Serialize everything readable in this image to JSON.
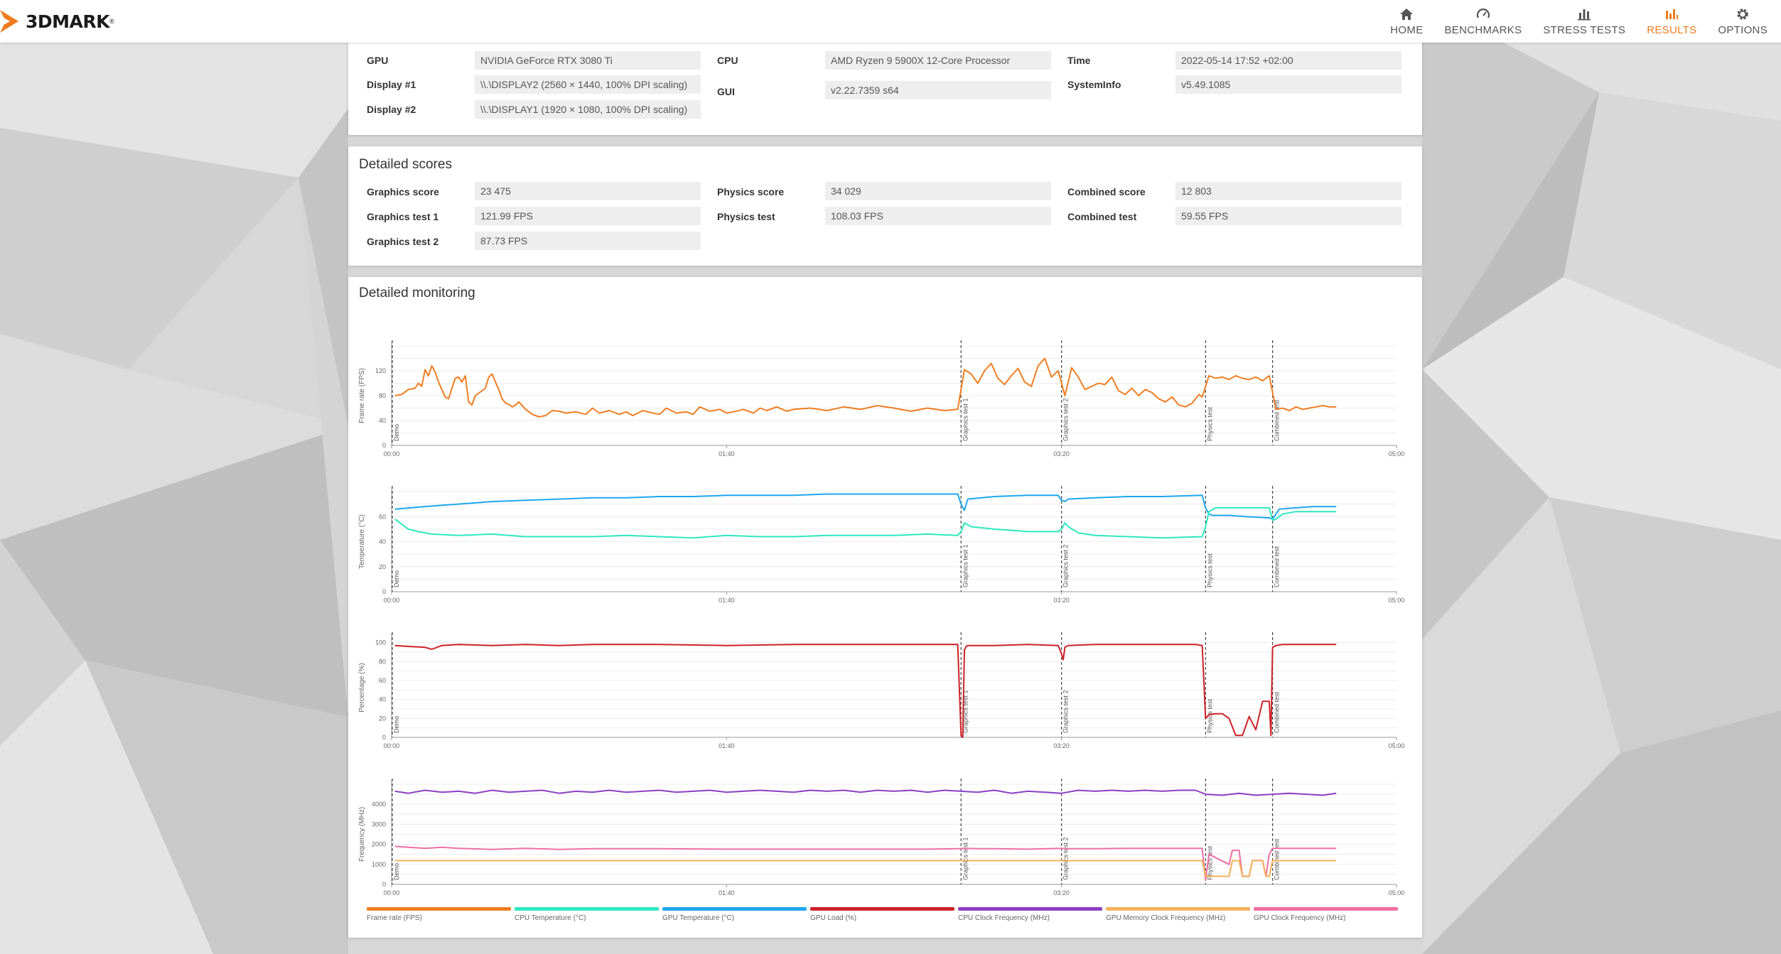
{
  "app": {
    "logo_text": "3DMARK",
    "logo_mark": "®"
  },
  "nav": [
    {
      "label": "HOME",
      "icon": "home-icon",
      "active": false
    },
    {
      "label": "BENCHMARKS",
      "icon": "gauge-icon",
      "active": false
    },
    {
      "label": "STRESS TESTS",
      "icon": "bar-chart-icon",
      "active": false
    },
    {
      "label": "RESULTS",
      "icon": "results-icon",
      "active": true
    },
    {
      "label": "OPTIONS",
      "icon": "gear-icon",
      "active": false
    }
  ],
  "accent_color": "#f07b1e",
  "system_info": {
    "gpu_label": "GPU",
    "gpu": "NVIDIA GeForce RTX 3080 Ti",
    "display1_label": "Display #1",
    "display1": "\\\\.\\DISPLAY2 (2560 × 1440, 100% DPI scaling)",
    "display2_label": "Display #2",
    "display2": "\\\\.\\DISPLAY1 (1920 × 1080, 100% DPI scaling)",
    "cpu_label": "CPU",
    "cpu": "AMD Ryzen 9 5900X 12-Core Processor",
    "gui_label": "GUI",
    "gui": "v2.22.7359 s64",
    "time_label": "Time",
    "time": "2022-05-14 17:52 +02:00",
    "sysinfo_label": "SystemInfo",
    "sysinfo": "v5.49.1085"
  },
  "detailed_scores": {
    "title": "Detailed scores",
    "graphics_score_label": "Graphics score",
    "graphics_score": "23 475",
    "graphics_test1_label": "Graphics test 1",
    "graphics_test1": "121.99 FPS",
    "graphics_test2_label": "Graphics test 2",
    "graphics_test2": "87.73 FPS",
    "physics_score_label": "Physics score",
    "physics_score": "34 029",
    "physics_test_label": "Physics test",
    "physics_test": "108.03 FPS",
    "combined_score_label": "Combined score",
    "combined_score": "12 803",
    "combined_test_label": "Combined test",
    "combined_test": "59.55 FPS"
  },
  "monitoring": {
    "title": "Detailed monitoring"
  },
  "chart_data": {
    "type": "line",
    "x_unit": "mm:ss",
    "xlim": [
      0,
      300
    ],
    "x_ticks": [
      "00:00",
      "01:40",
      "03:20",
      "05:00"
    ],
    "x_tick_values": [
      0,
      100,
      200,
      300
    ],
    "markers": [
      {
        "label": "Demo",
        "x": 0
      },
      {
        "label": "Graphics test 1",
        "x": 170
      },
      {
        "label": "Graphics test 2",
        "x": 200
      },
      {
        "label": "Physics test",
        "x": 243
      },
      {
        "label": "Combined test",
        "x": 263
      }
    ],
    "legend": [
      {
        "name": "Frame rate (FPS)",
        "color": "#ef7d22"
      },
      {
        "name": "CPU Temperature (°C)",
        "color": "#2ee8c0"
      },
      {
        "name": "GPU Temperature (°C)",
        "color": "#1ea7ef"
      },
      {
        "name": "GPU Load (%)",
        "color": "#cc2228"
      },
      {
        "name": "CPU Clock Frequency (MHz)",
        "color": "#8d3fc4"
      },
      {
        "name": "GPU Memory Clock Frequency (MHz)",
        "color": "#f5b25a"
      },
      {
        "name": "GPU Clock Frequency (MHz)",
        "color": "#ee6fa2"
      }
    ],
    "panels": [
      {
        "ylabel": "Frame rate (FPS)",
        "ylim": [
          0,
          160
        ],
        "y_ticks": [
          0,
          40,
          80,
          120
        ],
        "series": [
          {
            "name": "Frame rate (FPS)",
            "color": "#ef7d22",
            "x": [
              1,
              3,
              5,
              7,
              8,
              9,
              10,
              11,
              12,
              13,
              14,
              15,
              16,
              17,
              19,
              20,
              21,
              22,
              23,
              24,
              25,
              26,
              27,
              28,
              29,
              30,
              31,
              32,
              33,
              34,
              35,
              36,
              37,
              38,
              40,
              42,
              44,
              46,
              48,
              50,
              52,
              55,
              58,
              60,
              62,
              65,
              68,
              70,
              72,
              75,
              78,
              80,
              82,
              85,
              88,
              90,
              92,
              95,
              98,
              100,
              102,
              105,
              108,
              110,
              112,
              115,
              118,
              120,
              125,
              130,
              135,
              140,
              145,
              150,
              155,
              160,
              165,
              169,
              171,
              173,
              175,
              177,
              179,
              181,
              183,
              185,
              187,
              189,
              191,
              193,
              195,
              197,
              199,
              201,
              203,
              205,
              207,
              209,
              211,
              213,
              215,
              217,
              219,
              221,
              223,
              225,
              227,
              229,
              231,
              233,
              235,
              237,
              239,
              241,
              242,
              244,
              246,
              248,
              250,
              252,
              254,
              256,
              258,
              260,
              262,
              264,
              266,
              268,
              270,
              272,
              274,
              276,
              278,
              280,
              282
            ],
            "y": [
              80,
              82,
              90,
              92,
              100,
              95,
              122,
              112,
              128,
              118,
              102,
              90,
              78,
              75,
              108,
              110,
              102,
              112,
              70,
              65,
              80,
              84,
              88,
              92,
              110,
              115,
              102,
              90,
              75,
              68,
              66,
              62,
              65,
              70,
              58,
              50,
              46,
              48,
              56,
              55,
              52,
              54,
              50,
              60,
              52,
              56,
              50,
              54,
              48,
              56,
              52,
              50,
              60,
              52,
              54,
              50,
              62,
              55,
              58,
              52,
              54,
              58,
              52,
              60,
              56,
              62,
              55,
              58,
              60,
              56,
              62,
              58,
              64,
              60,
              55,
              60,
              56,
              58,
              122,
              115,
              100,
              120,
              132,
              108,
              98,
              112,
              124,
              102,
              95,
              128,
              140,
              110,
              120,
              80,
              125,
              110,
              90,
              95,
              100,
              98,
              110,
              88,
              82,
              92,
              80,
              90,
              85,
              75,
              70,
              78,
              65,
              62,
              68,
              82,
              78,
              112,
              108,
              110,
              106,
              112,
              108,
              106,
              110,
              104,
              112,
              58,
              60,
              56,
              62,
              58,
              60,
              62,
              64,
              62,
              62
            ]
          }
        ]
      },
      {
        "ylabel": "Temperature (°C)",
        "ylim": [
          0,
          80
        ],
        "y_ticks": [
          0,
          20,
          40,
          60
        ],
        "series": [
          {
            "name": "GPU Temperature (°C)",
            "color": "#1ea7ef",
            "x": [
              1,
              10,
              20,
              30,
              40,
              50,
              60,
              70,
              80,
              90,
              100,
              110,
              120,
              130,
              140,
              150,
              160,
              169,
              170,
              171,
              172,
              180,
              190,
              199,
              200,
              201,
              202,
              210,
              220,
              230,
              242,
              243,
              244,
              245,
              250,
              255,
              262,
              263,
              264,
              265,
              270,
              275,
              282
            ],
            "y": [
              66,
              68,
              70,
              72,
              73,
              74,
              75,
              75,
              76,
              76,
              77,
              77,
              77,
              78,
              78,
              78,
              78,
              78,
              70,
              65,
              74,
              76,
              77,
              77,
              73,
              72,
              74,
              75,
              76,
              76,
              77,
              67,
              62,
              61,
              61,
              60,
              59,
              58,
              62,
              66,
              67,
              68,
              68
            ]
          },
          {
            "name": "CPU Temperature (°C)",
            "color": "#2ee8c0",
            "x": [
              1,
              3,
              5,
              8,
              12,
              20,
              30,
              40,
              50,
              60,
              70,
              80,
              90,
              100,
              110,
              120,
              130,
              140,
              150,
              160,
              169,
              170,
              171,
              173,
              180,
              190,
              199,
              200,
              201,
              202,
              205,
              210,
              220,
              230,
              242,
              243,
              244,
              246,
              250,
              255,
              262,
              263,
              264,
              266,
              270,
              275,
              282
            ],
            "y": [
              58,
              54,
              50,
              48,
              46,
              45,
              46,
              44,
              44,
              44,
              45,
              44,
              43,
              45,
              44,
              44,
              45,
              45,
              45,
              46,
              45,
              48,
              55,
              52,
              50,
              48,
              48,
              50,
              55,
              52,
              47,
              45,
              44,
              43,
              44,
              52,
              64,
              67,
              67,
              67,
              67,
              57,
              58,
              62,
              64,
              64,
              64
            ]
          }
        ]
      },
      {
        "ylabel": "Percentage (%)",
        "ylim": [
          0,
          105
        ],
        "y_ticks": [
          0,
          20,
          40,
          60,
          80,
          100
        ],
        "series": [
          {
            "name": "GPU Load (%)",
            "color": "#cc2228",
            "x": [
              1,
              5,
              10,
              12,
              15,
              20,
              30,
              40,
              50,
              60,
              80,
              100,
              120,
              140,
              160,
              169,
              170,
              170.5,
              171,
              171.5,
              172,
              180,
              190,
              199,
              200,
              200.5,
              201,
              202,
              210,
              220,
              230,
              240,
              242,
              243,
              244,
              246,
              248,
              250,
              252,
              254,
              256,
              258,
              260,
              262,
              262.5,
              263,
              264,
              266,
              270,
              275,
              282
            ],
            "y": [
              97,
              96,
              95,
              93,
              97,
              98,
              97,
              98,
              97,
              98,
              98,
              97,
              98,
              98,
              98,
              98,
              2,
              0,
              92,
              96,
              97,
              97,
              98,
              97,
              88,
              82,
              95,
              97,
              98,
              98,
              98,
              98,
              97,
              20,
              24,
              25,
              25,
              20,
              2,
              2,
              22,
              8,
              38,
              38,
              2,
              95,
              97,
              98,
              98,
              98,
              98
            ]
          }
        ]
      },
      {
        "ylabel": "Frequency (MHz)",
        "ylim": [
          0,
          5000
        ],
        "y_ticks": [
          0,
          1000,
          2000,
          3000,
          4000
        ],
        "series": [
          {
            "name": "CPU Clock Frequency (MHz)",
            "color": "#8d3fc4",
            "x": [
              1,
              5,
              10,
              15,
              20,
              25,
              30,
              35,
              40,
              45,
              50,
              55,
              60,
              65,
              70,
              75,
              80,
              85,
              90,
              95,
              100,
              105,
              110,
              115,
              120,
              125,
              130,
              135,
              140,
              145,
              150,
              155,
              160,
              165,
              170,
              175,
              180,
              185,
              190,
              195,
              200,
              205,
              210,
              215,
              220,
              225,
              230,
              235,
              240,
              243,
              248,
              253,
              258,
              263,
              268,
              273,
              278,
              282
            ],
            "y": [
              4650,
              4550,
              4700,
              4600,
              4650,
              4550,
              4700,
              4600,
              4650,
              4700,
              4550,
              4650,
              4600,
              4700,
              4600,
              4650,
              4700,
              4600,
              4650,
              4700,
              4600,
              4650,
              4700,
              4650,
              4600,
              4700,
              4650,
              4700,
              4600,
              4700,
              4650,
              4700,
              4600,
              4700,
              4650,
              4600,
              4700,
              4550,
              4650,
              4600,
              4550,
              4700,
              4650,
              4700,
              4650,
              4700,
              4650,
              4700,
              4700,
              4500,
              4450,
              4550,
              4450,
              4500,
              4550,
              4500,
              4450,
              4550
            ]
          },
          {
            "name": "GPU Clock Frequency (MHz)",
            "color": "#ee6fa2",
            "x": [
              1,
              5,
              10,
              15,
              20,
              30,
              40,
              50,
              60,
              80,
              100,
              120,
              140,
              160,
              169,
              171,
              175,
              180,
              190,
              200,
              202,
              210,
              220,
              230,
              242,
              243,
              244,
              250,
              251,
              253,
              254,
              256,
              257,
              260,
              261,
              262,
              263,
              264,
              270,
              282
            ],
            "y": [
              1900,
              1850,
              1800,
              1850,
              1800,
              1750,
              1800,
              1750,
              1780,
              1780,
              1760,
              1760,
              1760,
              1760,
              1780,
              1800,
              1780,
              1780,
              1760,
              1800,
              1780,
              1780,
              1800,
              1800,
              1800,
              200,
              1500,
              1000,
              1700,
              1700,
              400,
              400,
              1200,
              1200,
              400,
              1500,
              1800,
              1800,
              1800,
              1800
            ]
          },
          {
            "name": "GPU Memory Clock Frequency (MHz)",
            "color": "#f5b25a",
            "x": [
              1,
              100,
              200,
              242,
              243,
              244,
              250,
              251,
              253,
              254,
              256,
              257,
              260,
              261,
              262,
              263,
              282
            ],
            "y": [
              1188,
              1188,
              1188,
              1188,
              405,
              405,
              405,
              1188,
              1188,
              405,
              405,
              1188,
              1188,
              405,
              405,
              1188,
              1188
            ]
          }
        ]
      }
    ]
  }
}
